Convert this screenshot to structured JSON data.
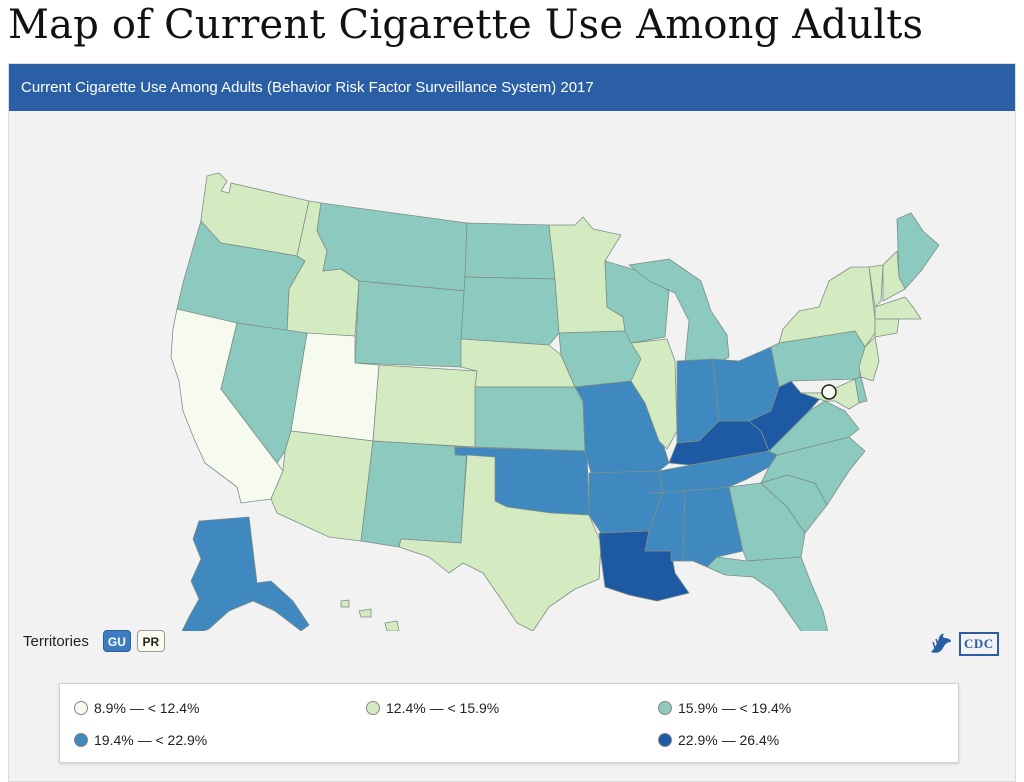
{
  "page": {
    "title": "Map of Current Cigarette Use Among Adults"
  },
  "widget": {
    "header": "Current Cigarette Use Among Adults (Behavior Risk Factor Surveillance System) 2017"
  },
  "colors": {
    "c1": "#f7fbef",
    "c2": "#d4ebc1",
    "c3": "#8cc9be",
    "c4": "#3f88c0",
    "c5": "#1d5aa3",
    "header": "#2a5fa6",
    "background": "#f2f2f2",
    "border": "#7d8f86"
  },
  "territories": {
    "label": "Territories",
    "items": [
      {
        "code": "GU",
        "class": "c4"
      },
      {
        "code": "PR",
        "class": "c1"
      }
    ]
  },
  "logo": {
    "text": "CDC",
    "icon": "hhs-eagle-icon"
  },
  "legend": {
    "items": [
      {
        "label": "8.9% — < 12.4%",
        "class": "c1"
      },
      {
        "label": "12.4% — < 15.9%",
        "class": "c2"
      },
      {
        "label": "15.9% — < 19.4%",
        "class": "c3"
      },
      {
        "label": "19.4% — < 22.9%",
        "class": "c4"
      },
      {
        "label": "22.9% — 26.4%",
        "class": "c5"
      }
    ]
  },
  "states": {
    "WA": "c2",
    "OR": "c3",
    "CA": "c1",
    "ID": "c2",
    "NV": "c3",
    "UT": "c1",
    "AZ": "c2",
    "MT": "c3",
    "WY": "c3",
    "CO": "c2",
    "NM": "c3",
    "ND": "c3",
    "SD": "c3",
    "NE": "c2",
    "KS": "c3",
    "OK": "c4",
    "TX": "c2",
    "MN": "c2",
    "IA": "c3",
    "MO": "c4",
    "AR": "c4",
    "LA": "c5",
    "WI": "c3",
    "IL": "c2",
    "MI": "c3",
    "IN": "c4",
    "OH": "c4",
    "KY": "c5",
    "TN": "c4",
    "MS": "c4",
    "AL": "c4",
    "GA": "c3",
    "FL": "c3",
    "SC": "c3",
    "NC": "c3",
    "VA": "c3",
    "WV": "c5",
    "PA": "c3",
    "NY": "c2",
    "ME": "c3",
    "VT": "c2",
    "NH": "c2",
    "MA": "c2",
    "CT": "c2",
    "NJ": "c2",
    "DE": "c3",
    "MD": "c2",
    "DC": "c1",
    "AK": "c4",
    "HI": "c2"
  }
}
